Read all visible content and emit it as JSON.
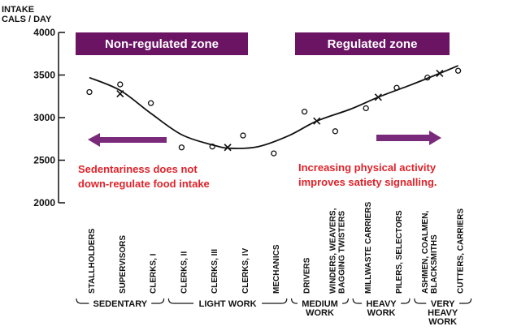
{
  "chart_data": {
    "type": "scatter",
    "ylabel_lines": [
      "INTAKE",
      "CALS / DAY"
    ],
    "ylim": [
      2000,
      4000
    ],
    "yticks": [
      "4000",
      "3500",
      "3000",
      "2500",
      "2000"
    ],
    "grid": false,
    "categories": [
      "STALLHOLDERS",
      "SUPERVISORS",
      "CLERKS, I",
      "CLERKS, II",
      "CLERKS, III",
      "CLERKS, IV",
      "MECHANICS",
      "DRIVERS",
      "WINDERS, WEAVERS, BAGGING TWISTERS",
      "MILLWASTE CARRIERS",
      "PILERS, SELECTORS",
      "ASHMEN, COALMEN, BLACKSMITHS",
      "CUTTERS, CARRIERS"
    ],
    "category_labels": [
      [
        "STALLHOLDERS"
      ],
      [
        "SUPERVISORS"
      ],
      [
        "CLERKS, I"
      ],
      [
        "CLERKS, II"
      ],
      [
        "CLERKS, III"
      ],
      [
        "CLERKS, IV"
      ],
      [
        "MECHANICS"
      ],
      [
        "DRIVERS"
      ],
      [
        "WINDERS, WEAVERS,",
        "BAGGING TWISTERS"
      ],
      [
        "MILLWASTE CARRIERS"
      ],
      [
        "PILERS, SELECTORS"
      ],
      [
        "ASHMEN, COALMEN,",
        "BLACKSMITHS"
      ],
      [
        "CUTTERS, CARRIERS"
      ]
    ],
    "points": [
      {
        "x": 0.0,
        "y": 3300,
        "marker": "o"
      },
      {
        "x": 1.0,
        "y": 3390,
        "marker": "o"
      },
      {
        "x": 1.0,
        "y": 3280,
        "marker": "x"
      },
      {
        "x": 2.0,
        "y": 3170,
        "marker": "o"
      },
      {
        "x": 3.0,
        "y": 2650,
        "marker": "o"
      },
      {
        "x": 4.0,
        "y": 2660,
        "marker": "o"
      },
      {
        "x": 4.5,
        "y": 2650,
        "marker": "x"
      },
      {
        "x": 5.0,
        "y": 2790,
        "marker": "o"
      },
      {
        "x": 6.0,
        "y": 2580,
        "marker": "o"
      },
      {
        "x": 7.0,
        "y": 3070,
        "marker": "o"
      },
      {
        "x": 7.4,
        "y": 2960,
        "marker": "x"
      },
      {
        "x": 8.0,
        "y": 2840,
        "marker": "o"
      },
      {
        "x": 9.0,
        "y": 3110,
        "marker": "o"
      },
      {
        "x": 9.4,
        "y": 3240,
        "marker": "x"
      },
      {
        "x": 10.0,
        "y": 3350,
        "marker": "o"
      },
      {
        "x": 11.0,
        "y": 3470,
        "marker": "o"
      },
      {
        "x": 11.4,
        "y": 3520,
        "marker": "x"
      },
      {
        "x": 12.0,
        "y": 3550,
        "marker": "o"
      }
    ],
    "trend": [
      [
        0.0,
        3470
      ],
      [
        1.0,
        3320
      ],
      [
        2.0,
        3050
      ],
      [
        3.0,
        2800
      ],
      [
        4.0,
        2680
      ],
      [
        4.6,
        2640
      ],
      [
        5.5,
        2660
      ],
      [
        6.5,
        2790
      ],
      [
        7.4,
        2960
      ],
      [
        8.5,
        3100
      ],
      [
        9.4,
        3240
      ],
      [
        10.5,
        3390
      ],
      [
        11.4,
        3520
      ],
      [
        12.0,
        3610
      ]
    ],
    "groups": [
      {
        "label_lines": [
          "SEDENTARY"
        ],
        "from": 0,
        "to": 2
      },
      {
        "label_lines": [
          "LIGHT WORK"
        ],
        "from": 3,
        "to": 6
      },
      {
        "label_lines": [
          "MEDIUM",
          "WORK"
        ],
        "from": 7,
        "to": 8
      },
      {
        "label_lines": [
          "HEAVY",
          "WORK"
        ],
        "from": 9,
        "to": 10
      },
      {
        "label_lines": [
          "VERY",
          "HEAVY",
          "WORK"
        ],
        "from": 11,
        "to": 12
      }
    ],
    "zones": [
      {
        "label": "Non-regulated zone"
      },
      {
        "label": "Regulated zone"
      }
    ],
    "annotations": [
      {
        "lines": [
          "Sedentariness does not",
          "down-regulate food intake"
        ],
        "arrow": "left"
      },
      {
        "lines": [
          "Increasing physical activity",
          "improves satiety signalling."
        ],
        "arrow": "right"
      }
    ],
    "colors": {
      "zone_fill": "#6b1464",
      "arrow": "#7a2a7a",
      "annotation": "#e0222a",
      "ink": "#111111"
    }
  }
}
